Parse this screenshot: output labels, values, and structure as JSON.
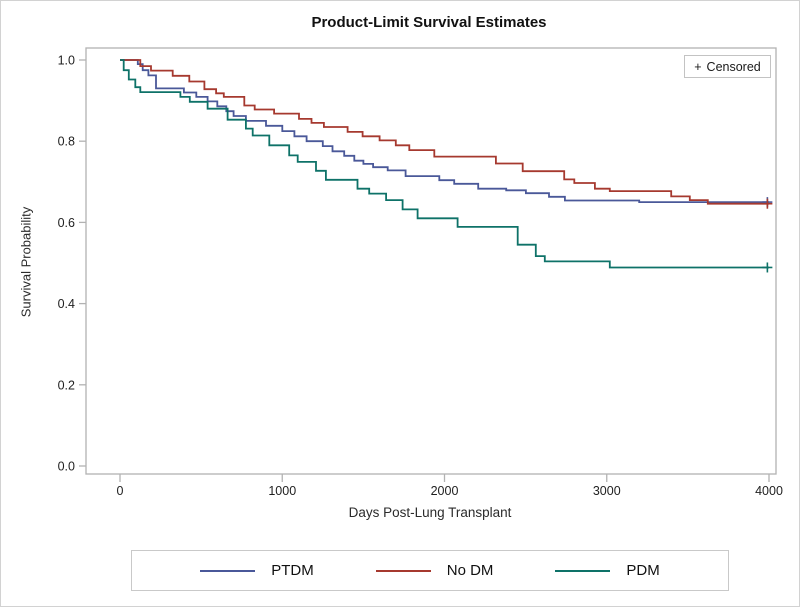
{
  "title": "Product-Limit Survival Estimates",
  "censored_box": {
    "symbol": "+",
    "label": "Censored"
  },
  "axes": {
    "x": {
      "label": "Days Post-Lung Transplant",
      "tick_labels": [
        "0",
        "1000",
        "2000",
        "3000",
        "4000"
      ],
      "ticks": [
        0,
        1000,
        2000,
        3000,
        4000
      ]
    },
    "y": {
      "label": "Survival Probability",
      "tick_labels": [
        "0.0",
        "0.2",
        "0.4",
        "0.6",
        "0.8",
        "1.0"
      ],
      "ticks": [
        0,
        0.2,
        0.4,
        0.6,
        0.8,
        1.0
      ]
    }
  },
  "legend": {
    "items": [
      {
        "label": "PTDM",
        "color": "#4A5899"
      },
      {
        "label": "No DM",
        "color": "#A6392F"
      },
      {
        "label": "PDM",
        "color": "#0E7268"
      }
    ]
  },
  "colors": {
    "axis": "#b2b2b2",
    "tick_text": "#1f1f1f",
    "background": "#ffffff"
  },
  "chart_data": {
    "type": "line",
    "step": true,
    "title": "Product-Limit Survival Estimates",
    "xlabel": "Days Post-Lung Transplant",
    "ylabel": "Survival Probability",
    "xlim": [
      0,
      4000
    ],
    "ylim": [
      0.0,
      1.0
    ],
    "grid": false,
    "legend_position": "bottom",
    "series": [
      {
        "name": "PTDM",
        "color": "#4A5899",
        "points": [
          [
            0,
            1.0
          ],
          [
            110,
            0.99
          ],
          [
            140,
            0.975
          ],
          [
            175,
            0.962
          ],
          [
            222,
            0.93
          ],
          [
            394,
            0.92
          ],
          [
            470,
            0.909
          ],
          [
            540,
            0.898
          ],
          [
            600,
            0.886
          ],
          [
            655,
            0.874
          ],
          [
            700,
            0.862
          ],
          [
            776,
            0.85
          ],
          [
            900,
            0.838
          ],
          [
            1000,
            0.825
          ],
          [
            1075,
            0.812
          ],
          [
            1150,
            0.8
          ],
          [
            1250,
            0.788
          ],
          [
            1310,
            0.775
          ],
          [
            1382,
            0.764
          ],
          [
            1444,
            0.752
          ],
          [
            1500,
            0.744
          ],
          [
            1560,
            0.736
          ],
          [
            1650,
            0.728
          ],
          [
            1760,
            0.714
          ],
          [
            1968,
            0.704
          ],
          [
            2060,
            0.695
          ],
          [
            2208,
            0.683
          ],
          [
            2380,
            0.679
          ],
          [
            2502,
            0.672
          ],
          [
            2644,
            0.663
          ],
          [
            2742,
            0.654
          ],
          [
            3200,
            0.65
          ],
          [
            4000,
            0.65
          ]
        ]
      },
      {
        "name": "No DM",
        "color": "#A6392F",
        "points": [
          [
            0,
            1.0
          ],
          [
            125,
            0.985
          ],
          [
            191,
            0.974
          ],
          [
            325,
            0.961
          ],
          [
            427,
            0.947
          ],
          [
            520,
            0.928
          ],
          [
            592,
            0.918
          ],
          [
            640,
            0.909
          ],
          [
            766,
            0.888
          ],
          [
            830,
            0.878
          ],
          [
            950,
            0.868
          ],
          [
            1103,
            0.855
          ],
          [
            1180,
            0.845
          ],
          [
            1257,
            0.835
          ],
          [
            1403,
            0.823
          ],
          [
            1495,
            0.812
          ],
          [
            1600,
            0.802
          ],
          [
            1700,
            0.79
          ],
          [
            1783,
            0.778
          ],
          [
            1937,
            0.762
          ],
          [
            2317,
            0.745
          ],
          [
            2482,
            0.726
          ],
          [
            2738,
            0.706
          ],
          [
            2800,
            0.697
          ],
          [
            2927,
            0.683
          ],
          [
            3019,
            0.677
          ],
          [
            3397,
            0.664
          ],
          [
            3512,
            0.655
          ],
          [
            3623,
            0.646
          ],
          [
            4000,
            0.646
          ]
        ]
      },
      {
        "name": "PDM",
        "color": "#0E7268",
        "points": [
          [
            0,
            1.0
          ],
          [
            23,
            0.975
          ],
          [
            54,
            0.952
          ],
          [
            94,
            0.933
          ],
          [
            125,
            0.921
          ],
          [
            372,
            0.909
          ],
          [
            430,
            0.897
          ],
          [
            540,
            0.88
          ],
          [
            663,
            0.853
          ],
          [
            776,
            0.831
          ],
          [
            818,
            0.814
          ],
          [
            920,
            0.79
          ],
          [
            1043,
            0.765
          ],
          [
            1095,
            0.749
          ],
          [
            1208,
            0.727
          ],
          [
            1269,
            0.705
          ],
          [
            1464,
            0.683
          ],
          [
            1536,
            0.671
          ],
          [
            1640,
            0.655
          ],
          [
            1742,
            0.632
          ],
          [
            1834,
            0.61
          ],
          [
            2081,
            0.589
          ],
          [
            2451,
            0.545
          ],
          [
            2563,
            0.517
          ],
          [
            2618,
            0.504
          ],
          [
            3019,
            0.489
          ],
          [
            4000,
            0.489
          ]
        ]
      }
    ],
    "censored_marks": [
      {
        "series": "PTDM",
        "x": 3990,
        "y": 0.65
      },
      {
        "series": "No DM",
        "x": 3990,
        "y": 0.646
      },
      {
        "series": "PDM",
        "x": 3990,
        "y": 0.489
      }
    ]
  }
}
